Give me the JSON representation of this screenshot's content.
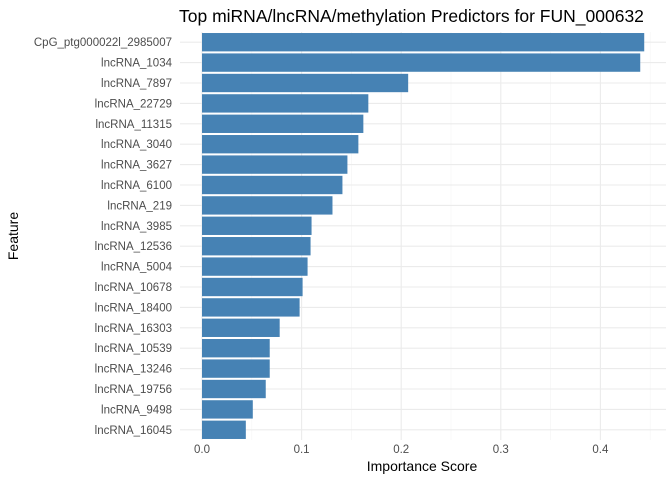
{
  "chart_data": {
    "type": "bar",
    "orientation": "horizontal",
    "title": "Top miRNA/lncRNA/methylation Predictors for FUN_000632",
    "xlabel": "Importance Score",
    "ylabel": "Feature",
    "xlim": [
      0,
      0.45
    ],
    "xticks": [
      0.0,
      0.1,
      0.2,
      0.3,
      0.4
    ],
    "xtick_labels": [
      "0.0",
      "0.1",
      "0.2",
      "0.3",
      "0.4"
    ],
    "grid": true,
    "bar_color": "#4682b4",
    "categories": [
      "CpG_ptg000022l_2985007",
      "lncRNA_1034",
      "lncRNA_7897",
      "lncRNA_22729",
      "lncRNA_11315",
      "lncRNA_3040",
      "lncRNA_3627",
      "lncRNA_6100",
      "lncRNA_219",
      "lncRNA_3985",
      "lncRNA_12536",
      "lncRNA_5004",
      "lncRNA_10678",
      "lncRNA_18400",
      "lncRNA_16303",
      "lncRNA_10539",
      "lncRNA_13246",
      "lncRNA_19756",
      "lncRNA_9498",
      "lncRNA_16045"
    ],
    "values": [
      0.444,
      0.44,
      0.207,
      0.167,
      0.162,
      0.157,
      0.146,
      0.141,
      0.131,
      0.11,
      0.109,
      0.106,
      0.101,
      0.098,
      0.078,
      0.068,
      0.068,
      0.064,
      0.051,
      0.044
    ]
  }
}
